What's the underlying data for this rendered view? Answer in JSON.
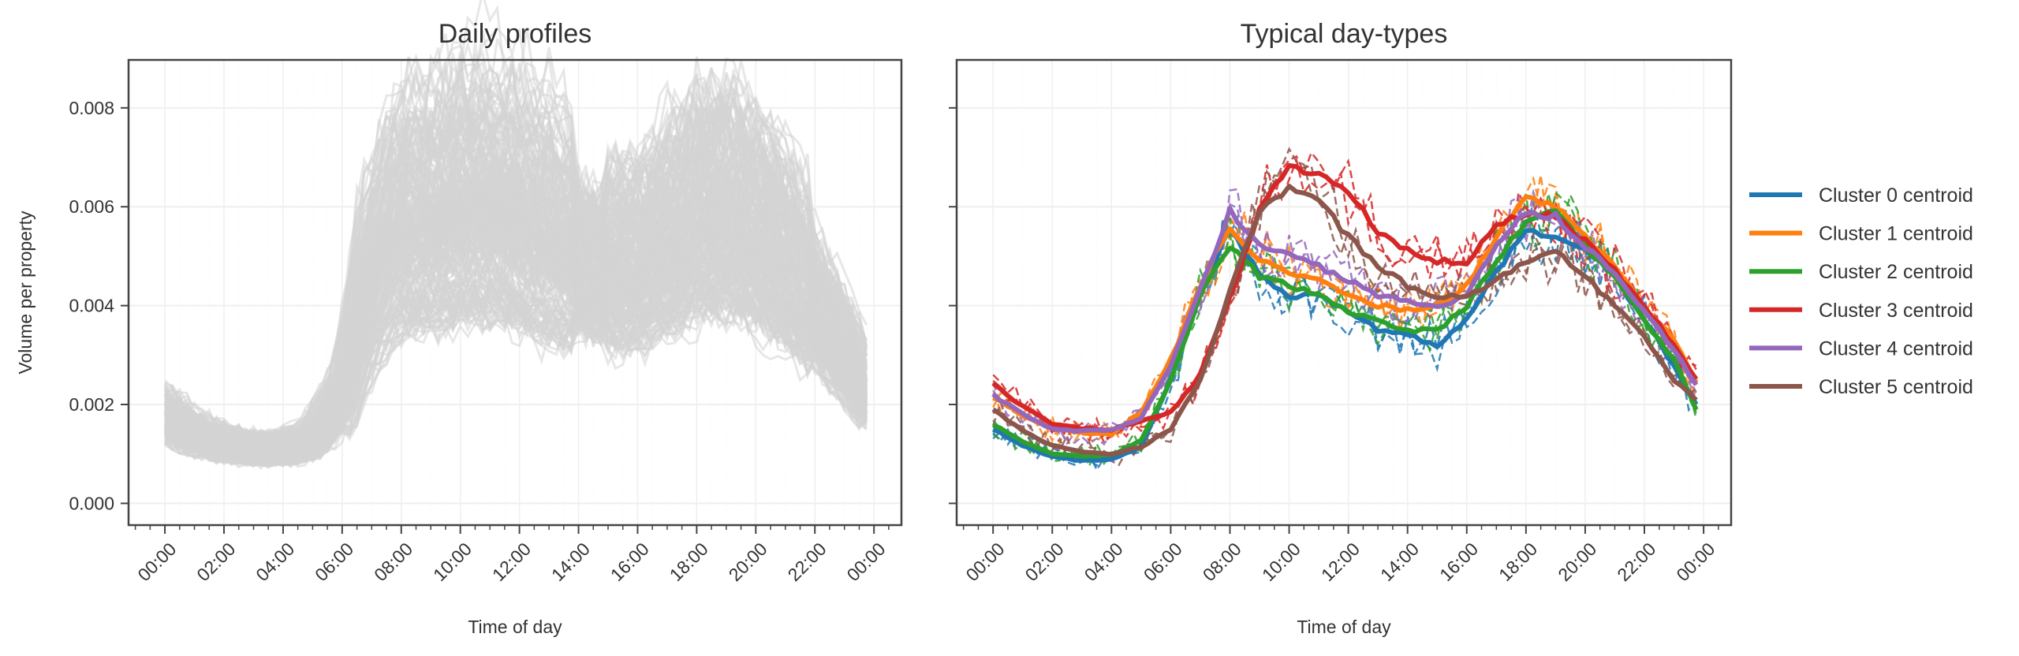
{
  "chart_data": [
    {
      "type": "line",
      "title": "Daily profiles",
      "xlabel": "Time of day",
      "ylabel": "Volume per property",
      "x_tick_labels": [
        "00:00",
        "02:00",
        "04:00",
        "06:00",
        "08:00",
        "10:00",
        "12:00",
        "14:00",
        "16:00",
        "18:00",
        "20:00",
        "22:00",
        "00:00"
      ],
      "y_tick_labels": [
        "0.000",
        "0.002",
        "0.004",
        "0.006",
        "0.008"
      ],
      "y_ticks": [
        0,
        0.002,
        0.004,
        0.006,
        0.008
      ],
      "ylim": [
        -0.00044,
        0.00897
      ],
      "xlim_hours": [
        -1.23,
        24.93
      ],
      "grid": true,
      "line_color": "#d3d3d3",
      "description_series": "many individual daily profiles (grey), approx. mean envelope below",
      "hours": [
        0,
        1,
        2,
        3,
        4,
        5,
        6,
        7,
        8,
        9,
        10,
        11,
        12,
        13,
        14,
        15,
        16,
        17,
        18,
        19,
        20,
        21,
        22,
        23,
        23.75
      ],
      "approx_mean": [
        0.0018,
        0.0014,
        0.0012,
        0.0011,
        0.0011,
        0.0013,
        0.0022,
        0.0045,
        0.0055,
        0.0055,
        0.0058,
        0.0058,
        0.0056,
        0.0052,
        0.0049,
        0.0047,
        0.0047,
        0.0052,
        0.0057,
        0.0058,
        0.0054,
        0.0048,
        0.004,
        0.0031,
        0.0022
      ]
    },
    {
      "type": "line",
      "title": "Typical day-types",
      "xlabel": "Time of day",
      "x_tick_labels": [
        "00:00",
        "02:00",
        "04:00",
        "06:00",
        "08:00",
        "10:00",
        "12:00",
        "14:00",
        "16:00",
        "18:00",
        "20:00",
        "22:00",
        "00:00"
      ],
      "ylim": [
        -0.00044,
        0.00897
      ],
      "xlim_hours": [
        -1.23,
        24.93
      ],
      "grid": true,
      "legend_position": "right-outside",
      "hours": [
        0,
        1,
        2,
        3,
        4,
        5,
        6,
        7,
        8,
        9,
        10,
        11,
        12,
        13,
        14,
        15,
        16,
        17,
        18,
        19,
        20,
        21,
        22,
        23,
        23.75
      ],
      "series": [
        {
          "name": "Cluster 0 centroid",
          "color": "#1f77b4",
          "values": [
            0.0015,
            0.00117,
            0.00095,
            0.00086,
            0.00089,
            0.00114,
            0.0025,
            0.0042,
            0.0056,
            0.0046,
            0.0042,
            0.0042,
            0.0039,
            0.0035,
            0.0034,
            0.0032,
            0.0037,
            0.0047,
            0.0055,
            0.0054,
            0.0051,
            0.0046,
            0.0037,
            0.0028,
            0.002
          ]
        },
        {
          "name": "Cluster 1 centroid",
          "color": "#ff7f0e",
          "values": [
            0.00215,
            0.00178,
            0.00152,
            0.00143,
            0.0014,
            0.00184,
            0.0029,
            0.0044,
            0.0056,
            0.0049,
            0.0047,
            0.0045,
            0.0042,
            0.004,
            0.0039,
            0.004,
            0.0044,
            0.0054,
            0.0062,
            0.006,
            0.0054,
            0.0048,
            0.004,
            0.0033,
            0.00244
          ]
        },
        {
          "name": "Cluster 2 centroid",
          "color": "#2ca02c",
          "values": [
            0.0016,
            0.00124,
            0.001,
            0.00095,
            0.00098,
            0.00127,
            0.0025,
            0.0042,
            0.0052,
            0.0046,
            0.0044,
            0.0042,
            0.0039,
            0.0037,
            0.0035,
            0.0035,
            0.004,
            0.0049,
            0.0057,
            0.0059,
            0.0052,
            0.0046,
            0.0037,
            0.0029,
            0.0019
          ]
        },
        {
          "name": "Cluster 3 centroid",
          "color": "#d62728",
          "values": [
            0.0024,
            0.00197,
            0.0016,
            0.00152,
            0.00149,
            0.00168,
            0.00184,
            0.0026,
            0.0042,
            0.0059,
            0.0069,
            0.0066,
            0.0063,
            0.0055,
            0.0051,
            0.0049,
            0.0049,
            0.0056,
            0.0059,
            0.0058,
            0.0053,
            0.0047,
            0.004,
            0.0032,
            0.0025
          ]
        },
        {
          "name": "Cluster 4 centroid",
          "color": "#9467bd",
          "values": [
            0.0022,
            0.0018,
            0.0015,
            0.00146,
            0.00149,
            0.0017,
            0.0028,
            0.0043,
            0.0059,
            0.0052,
            0.0051,
            0.0048,
            0.0045,
            0.0042,
            0.0041,
            0.004,
            0.0042,
            0.0052,
            0.0059,
            0.0058,
            0.0052,
            0.0046,
            0.0039,
            0.0031,
            0.0024
          ]
        },
        {
          "name": "Cluster 5 centroid",
          "color": "#8c564b",
          "values": [
            0.0019,
            0.00146,
            0.00117,
            0.00105,
            0.001,
            0.00114,
            0.0015,
            0.0025,
            0.0043,
            0.0059,
            0.0064,
            0.0061,
            0.0054,
            0.0048,
            0.0044,
            0.0042,
            0.0042,
            0.0045,
            0.0049,
            0.0051,
            0.0046,
            0.004,
            0.0034,
            0.0025,
            0.0021
          ]
        }
      ]
    }
  ]
}
